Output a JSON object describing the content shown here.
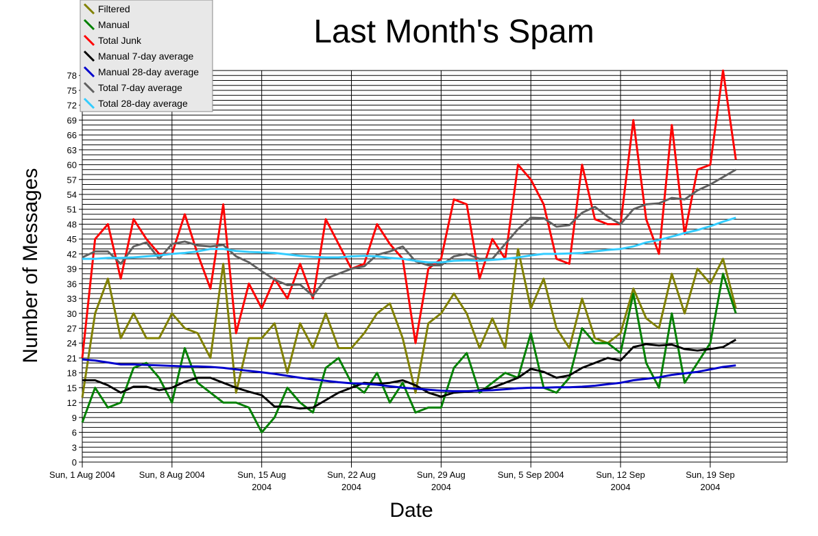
{
  "chart_data": {
    "type": "line",
    "title": "Last Month's Spam",
    "x_label": "Date",
    "y_label": "Number of Messages",
    "x": [
      "2004-08-01",
      "2004-08-02",
      "2004-08-03",
      "2004-08-04",
      "2004-08-05",
      "2004-08-06",
      "2004-08-07",
      "2004-08-08",
      "2004-08-09",
      "2004-08-10",
      "2004-08-11",
      "2004-08-12",
      "2004-08-13",
      "2004-08-14",
      "2004-08-15",
      "2004-08-16",
      "2004-08-17",
      "2004-08-18",
      "2004-08-19",
      "2004-08-20",
      "2004-08-21",
      "2004-08-22",
      "2004-08-23",
      "2004-08-24",
      "2004-08-25",
      "2004-08-26",
      "2004-08-27",
      "2004-08-28",
      "2004-08-29",
      "2004-08-30",
      "2004-08-31",
      "2004-09-01",
      "2004-09-02",
      "2004-09-03",
      "2004-09-04",
      "2004-09-05",
      "2004-09-06",
      "2004-09-07",
      "2004-09-08",
      "2004-09-09",
      "2004-09-10",
      "2004-09-11",
      "2004-09-12",
      "2004-09-13",
      "2004-09-14",
      "2004-09-15",
      "2004-09-16",
      "2004-09-17",
      "2004-09-18",
      "2004-09-19",
      "2004-09-20",
      "2004-09-21"
    ],
    "series": [
      {
        "name": "Filtered",
        "color": "#808000",
        "values": [
          13,
          30,
          37,
          25,
          30,
          25,
          25,
          30,
          27,
          26,
          21,
          40,
          14,
          25,
          25,
          28,
          18,
          28,
          23,
          30,
          23,
          23,
          26,
          30,
          32,
          25,
          14,
          28,
          30,
          34,
          30,
          23,
          29,
          23,
          43,
          31,
          37,
          27,
          23,
          33,
          25,
          24,
          26,
          35,
          29,
          27,
          38,
          30,
          39,
          36,
          41,
          31
        ]
      },
      {
        "name": "Manual",
        "color": "#008000",
        "values": [
          8,
          15,
          11,
          12,
          19,
          20,
          17,
          12,
          23,
          16,
          14,
          12,
          12,
          11,
          6,
          9,
          15,
          12,
          10,
          19,
          21,
          16,
          14,
          18,
          12,
          16,
          10,
          11,
          11,
          19,
          22,
          14,
          16,
          18,
          17,
          26,
          15,
          14,
          17,
          27,
          24,
          24,
          22,
          34,
          20,
          15,
          30,
          16,
          20,
          24,
          38,
          30
        ]
      },
      {
        "name": "Total Junk",
        "color": "#ff0000",
        "values": [
          21,
          45,
          48,
          37,
          49,
          45,
          42,
          42,
          50,
          42,
          35,
          52,
          26,
          36,
          31,
          37,
          33,
          40,
          33,
          49,
          44,
          39,
          40,
          48,
          44,
          41,
          24,
          39,
          41,
          53,
          52,
          37,
          45,
          41,
          60,
          57,
          52,
          41,
          40,
          60,
          49,
          48,
          48,
          69,
          49,
          42,
          68,
          46,
          59,
          60,
          79,
          61
        ]
      },
      {
        "name": "Manual 7-day average",
        "color": "#000000",
        "values": [
          16.5,
          16.5,
          15.5,
          14,
          15.2,
          15.2,
          14.5,
          15,
          16.2,
          17,
          17,
          16,
          15,
          14.2,
          13.5,
          11.2,
          11.2,
          10.8,
          11,
          12.5,
          14,
          15,
          16,
          15.8,
          16,
          16.5,
          15.5,
          14,
          13.2,
          14,
          14.2,
          14.5,
          15,
          16,
          17,
          18.8,
          18.2,
          17,
          17.5,
          19,
          20,
          21,
          20.5,
          23.2,
          23.8,
          23.5,
          23.7,
          22.8,
          22.5,
          22.8,
          23.2,
          24.7
        ]
      },
      {
        "name": "Manual 28-day average",
        "color": "#0000cc",
        "values": [
          20.7,
          20.5,
          20.1,
          19.7,
          19.7,
          19.6,
          19.5,
          19.4,
          19.3,
          19.3,
          19.2,
          19,
          18.7,
          18.4,
          18.1,
          17.8,
          17.4,
          17.0,
          16.7,
          16.4,
          16.1,
          15.9,
          15.8,
          15.6,
          15.3,
          15.0,
          14.8,
          14.6,
          14.4,
          14.3,
          14.3,
          14.4,
          14.5,
          14.7,
          14.9,
          15.0,
          15.0,
          15.1,
          15.1,
          15.2,
          15.4,
          15.7,
          16.0,
          16.5,
          16.8,
          17.1,
          17.6,
          17.9,
          18.2,
          18.7,
          19.2,
          19.5
        ]
      },
      {
        "name": "Total 7-day average",
        "color": "#606060",
        "values": [
          41.3,
          42.5,
          42.5,
          40,
          43.5,
          44.3,
          41,
          44,
          44.5,
          43.7,
          43.5,
          43.8,
          41.5,
          40.3,
          38.5,
          36.8,
          35.7,
          35.8,
          33.5,
          37,
          38,
          39,
          39.5,
          41.8,
          42.5,
          43.5,
          40.5,
          39.7,
          39.7,
          41.5,
          42,
          41,
          41,
          44,
          47,
          49.3,
          49.2,
          47.5,
          47.8,
          50.3,
          51.5,
          49.5,
          48,
          51,
          52,
          52.2,
          53.3,
          53,
          54.8,
          56,
          57.5,
          59
        ]
      },
      {
        "name": "Total 28-day average",
        "color": "#33ccff",
        "values": [
          41,
          41,
          41.2,
          41.2,
          41.3,
          41.5,
          41.7,
          42,
          42.2,
          42.5,
          43,
          43,
          42.6,
          42.4,
          42.3,
          42.2,
          41.9,
          41.6,
          41.4,
          41.3,
          41.3,
          41.5,
          41.6,
          41.5,
          41.2,
          41.0,
          40.6,
          40.3,
          40.3,
          40.6,
          40.7,
          40.6,
          40.8,
          41,
          41.3,
          41.7,
          42,
          42,
          42.1,
          42.2,
          42.5,
          42.8,
          43,
          43.5,
          44.3,
          44.8,
          45.5,
          46.2,
          46.8,
          47.6,
          48.5,
          49.3
        ]
      }
    ],
    "xlim": [
      "2004-08-01",
      "2004-09-25"
    ],
    "xticks": [
      {
        "value": "2004-08-01",
        "label": "Sun, 1 Aug 2004"
      },
      {
        "value": "2004-08-08",
        "label": "Sun, 8 Aug 2004"
      },
      {
        "value": "2004-08-15",
        "label": "Sun, 15 Aug\n2004"
      },
      {
        "value": "2004-08-22",
        "label": "Sun, 22 Aug\n2004"
      },
      {
        "value": "2004-08-29",
        "label": "Sun, 29 Aug\n2004"
      },
      {
        "value": "2004-09-05",
        "label": "Sun, 5 Sep 2004"
      },
      {
        "value": "2004-09-12",
        "label": "Sun, 12 Sep\n2004"
      },
      {
        "value": "2004-09-19",
        "label": "Sun, 19 Sep\n2004"
      }
    ],
    "ylim": [
      0,
      79
    ],
    "yticks": [
      0,
      3,
      6,
      9,
      12,
      15,
      18,
      21,
      24,
      27,
      30,
      33,
      36,
      39,
      42,
      45,
      48,
      51,
      54,
      57,
      60,
      63,
      66,
      69,
      72,
      75,
      78
    ],
    "grid": true,
    "minor_grid_step": 1,
    "legend": "top-left"
  }
}
